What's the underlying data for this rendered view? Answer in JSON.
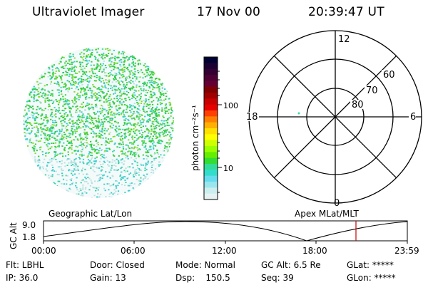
{
  "header": {
    "title": "Ultraviolet Imager",
    "date": "17 Nov 00",
    "time": "20:39:47 UT"
  },
  "colorbar": {
    "label": "photon cm⁻²s⁻¹",
    "ticks": [
      "100",
      "10"
    ],
    "colors": [
      "#000033",
      "#1a0033",
      "#330033",
      "#4d0033",
      "#660033",
      "#800000",
      "#a00000",
      "#c80000",
      "#e60000",
      "#ff4000",
      "#ff8000",
      "#ffb000",
      "#ffe000",
      "#ffff00",
      "#ccff00",
      "#99ff00",
      "#66ee00",
      "#33dd33",
      "#33dd99",
      "#33ddcc",
      "#66ddee",
      "#99e6ee",
      "#cceeee",
      "#e6f2f2"
    ]
  },
  "polar": {
    "mlt_labels": [
      "12",
      "18",
      "6",
      "0"
    ],
    "lat_labels": [
      "60",
      "70",
      "80"
    ]
  },
  "panel_titles": {
    "left": "Geographic Lat/Lon",
    "right": "Apex MLat/MLT"
  },
  "gc_alt": {
    "axis_label": "GC Alt",
    "y_ticks": [
      "9.0",
      "1.8"
    ],
    "x_ticks": [
      "00:00",
      "06:00",
      "12:00",
      "18:00",
      "23:59"
    ]
  },
  "info": {
    "flt": "Flt: LBHL",
    "ip": "IP: 36.0",
    "door": "Door: Closed",
    "gain": "Gain: 13",
    "mode": "Mode: Normal",
    "dsp": "Dsp:    150.5",
    "gcalt": "GC Alt: 6.5 Re",
    "seq": "Seq: 39",
    "glat": "GLat: *****",
    "glon": "GLon: *****"
  },
  "accent": {
    "marker_color": "#cc0000",
    "imager_colors": [
      "#2ecc40",
      "#7fdb2a",
      "#39cccc",
      "#3ad6a0",
      "#b8e0e0"
    ]
  }
}
